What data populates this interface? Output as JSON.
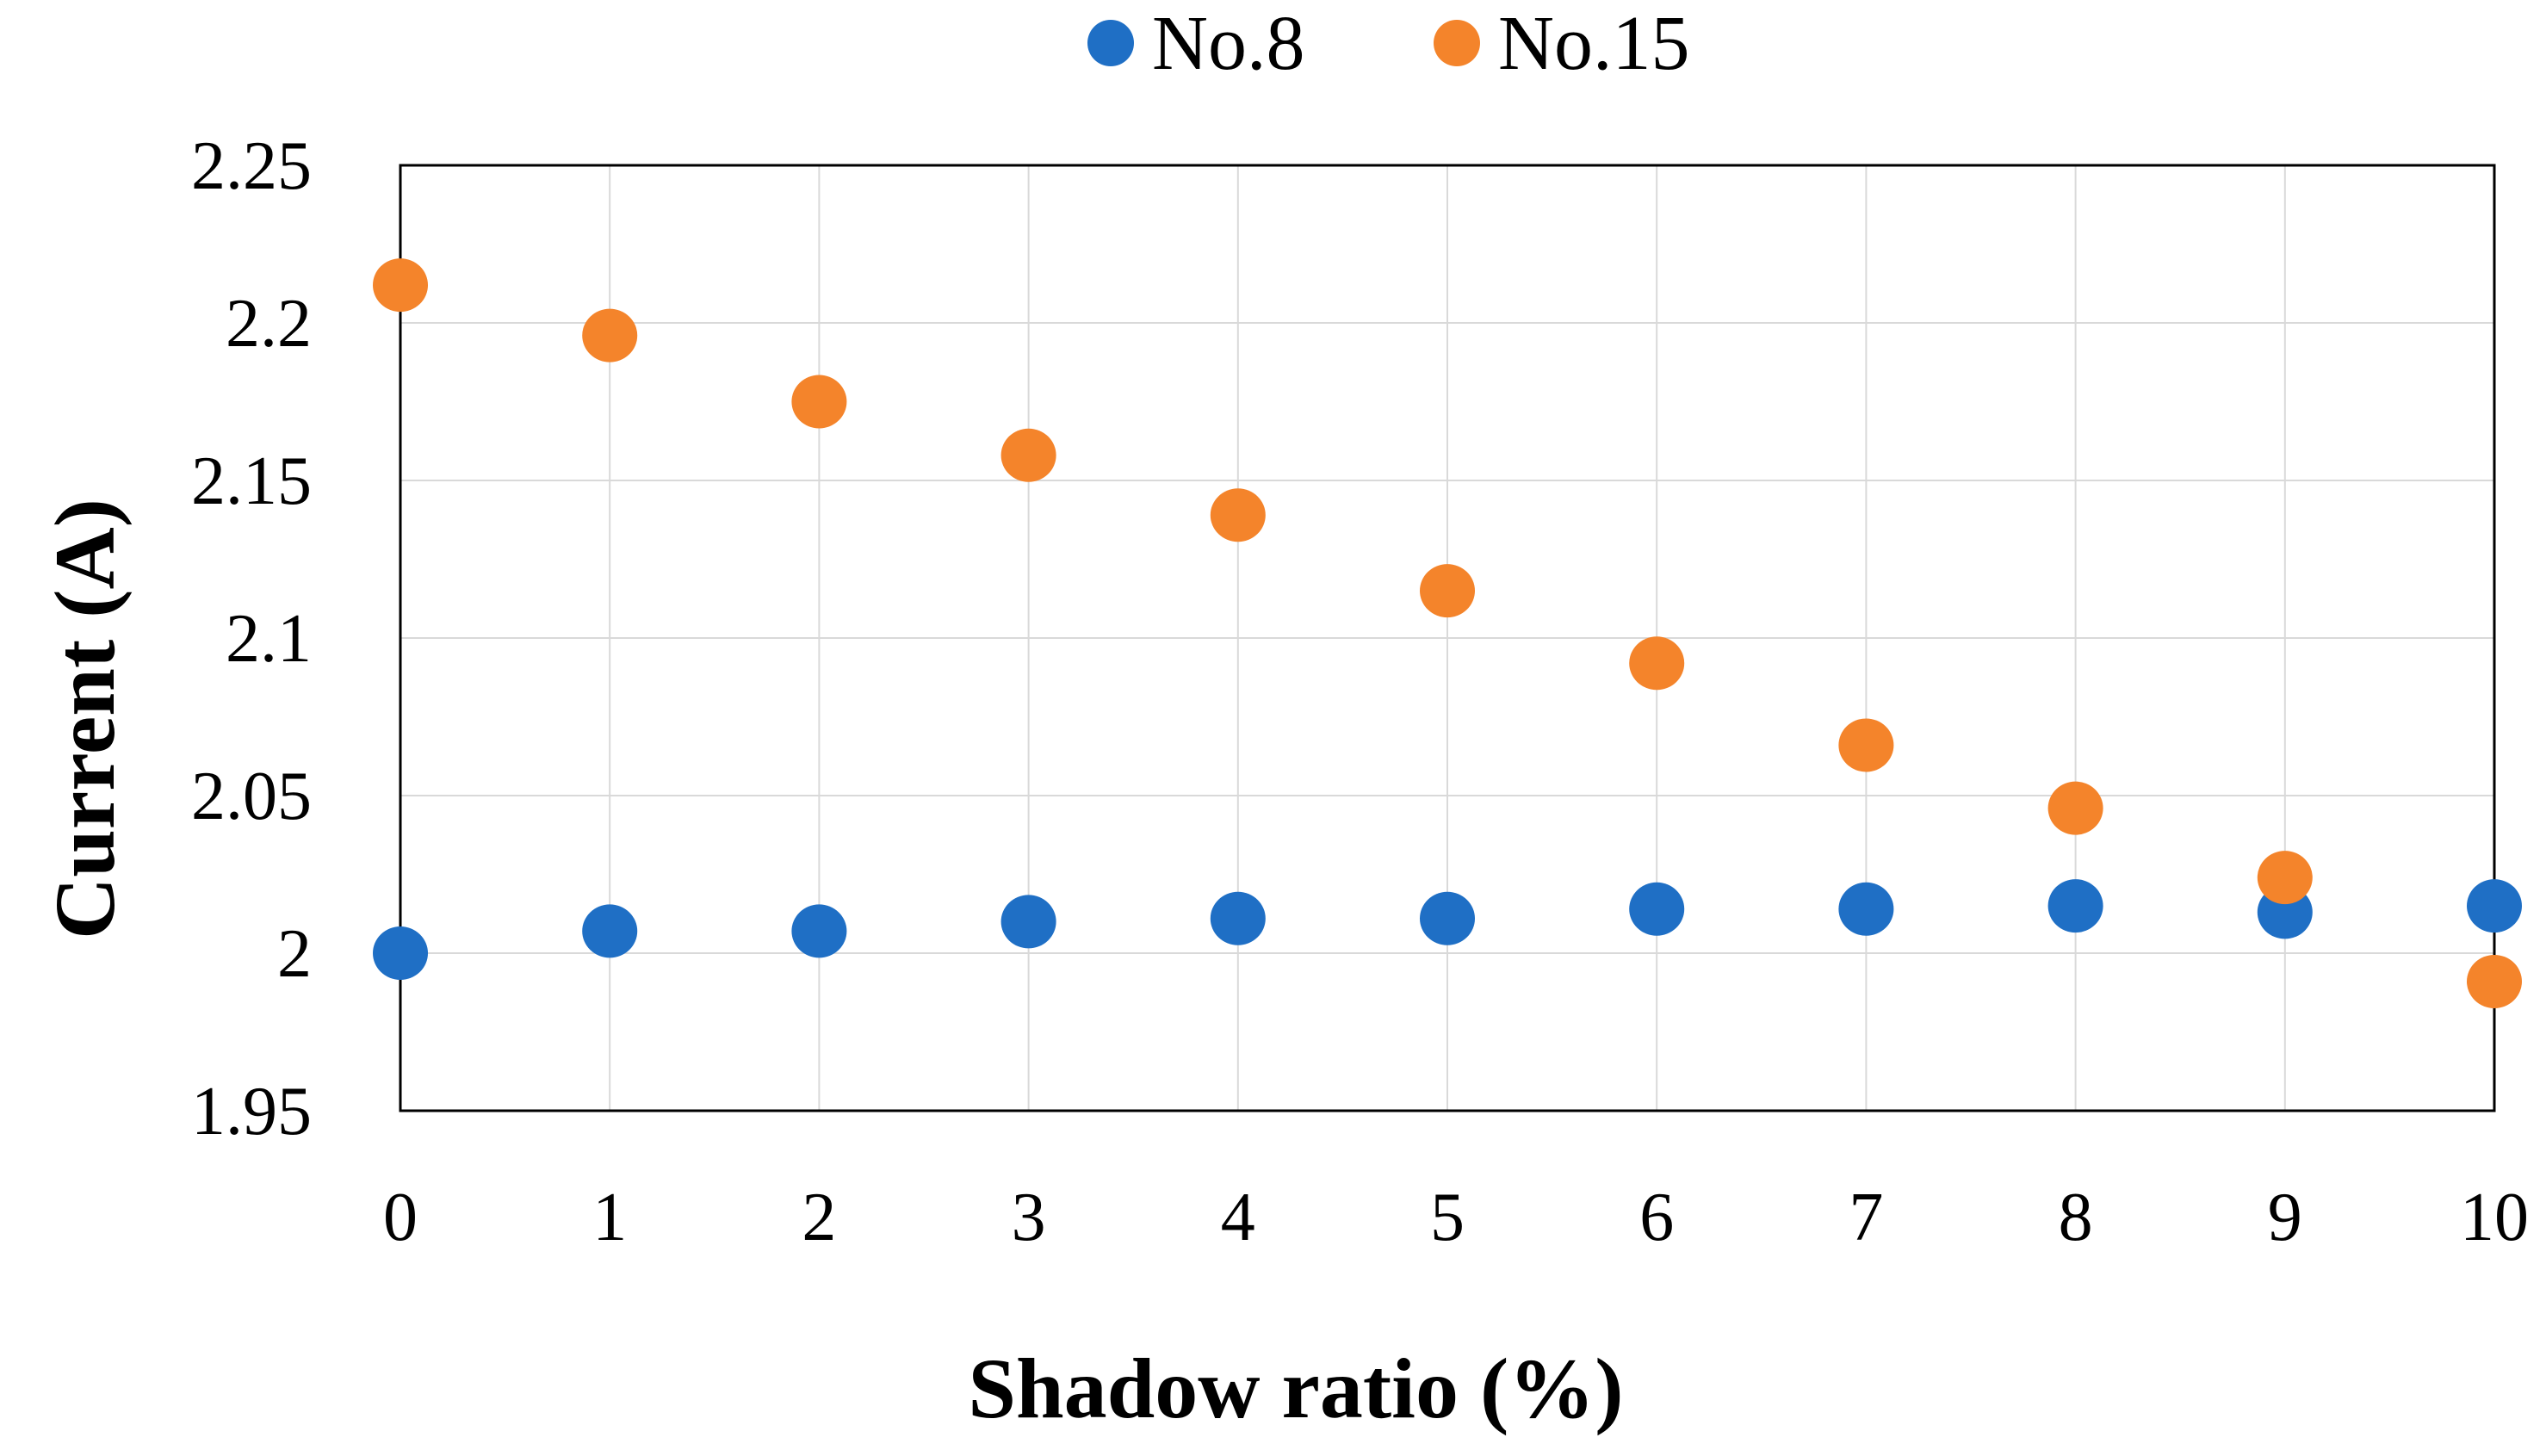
{
  "chart_data": {
    "type": "scatter",
    "title": "",
    "xlabel": "Shadow ratio (%)",
    "ylabel": "Current (A)",
    "xlim": [
      0,
      10
    ],
    "ylim": [
      1.95,
      2.25
    ],
    "x_ticks": [
      "0",
      "1",
      "2",
      "3",
      "4",
      "5",
      "6",
      "7",
      "8",
      "9",
      "10"
    ],
    "y_ticks": [
      "2.25",
      "2.2",
      "2.15",
      "2.1",
      "2.05",
      "2",
      "1.95"
    ],
    "grid": true,
    "legend_position": "top-center",
    "series": [
      {
        "name": "No.8",
        "color": "#1F6FC5",
        "x": [
          0,
          1,
          2,
          3,
          4,
          5,
          6,
          7,
          8,
          9,
          10
        ],
        "y": [
          2.0,
          2.007,
          2.007,
          2.01,
          2.011,
          2.011,
          2.014,
          2.014,
          2.015,
          2.013,
          2.015
        ]
      },
      {
        "name": "No.15",
        "color": "#F4842B",
        "x": [
          0,
          1,
          2,
          3,
          4,
          5,
          6,
          7,
          8,
          9,
          10
        ],
        "y": [
          2.212,
          2.196,
          2.175,
          2.158,
          2.139,
          2.115,
          2.092,
          2.066,
          2.046,
          2.024,
          1.991
        ]
      }
    ]
  }
}
